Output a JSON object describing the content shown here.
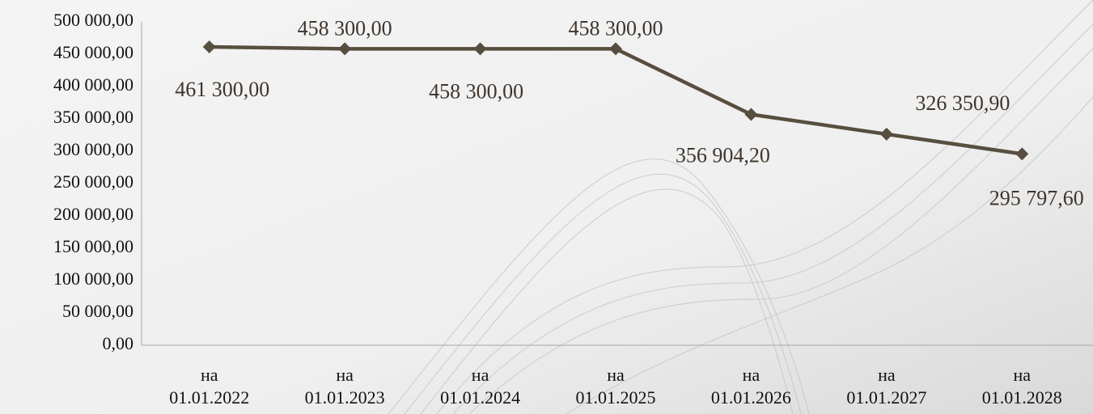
{
  "chart_data": {
    "type": "line",
    "categories": [
      "на\n01.01.2022",
      "на\n01.01.2023",
      "на\n01.01.2024",
      "на\n01.01.2025",
      "на\n01.01.2026",
      "на\n01.01.2027",
      "на\n01.01.2028"
    ],
    "series": [
      {
        "color": "#574e3f",
        "values": [
          461300,
          458300,
          458300,
          458300,
          356904.2,
          326350.9,
          295797.6
        ],
        "value_labels": [
          "461 300,00",
          "458 300,00",
          "458 300,00",
          "458 300,00",
          "356 904,20",
          "326 350,90",
          "295 797,60"
        ]
      }
    ],
    "ylim": [
      0,
      500000
    ],
    "yticks": [
      {
        "value": 0,
        "label": "0,00"
      },
      {
        "value": 50000,
        "label": "50 000,00"
      },
      {
        "value": 100000,
        "label": "100 000,00"
      },
      {
        "value": 150000,
        "label": "150 000,00"
      },
      {
        "value": 200000,
        "label": "200 000,00"
      },
      {
        "value": 250000,
        "label": "250 000,00"
      },
      {
        "value": 300000,
        "label": "300 000,00"
      },
      {
        "value": 350000,
        "label": "350 000,00"
      },
      {
        "value": 400000,
        "label": "400 000,00"
      },
      {
        "value": 450000,
        "label": "450 000,00"
      },
      {
        "value": 500000,
        "label": "500 000,00"
      }
    ],
    "grid": false
  }
}
